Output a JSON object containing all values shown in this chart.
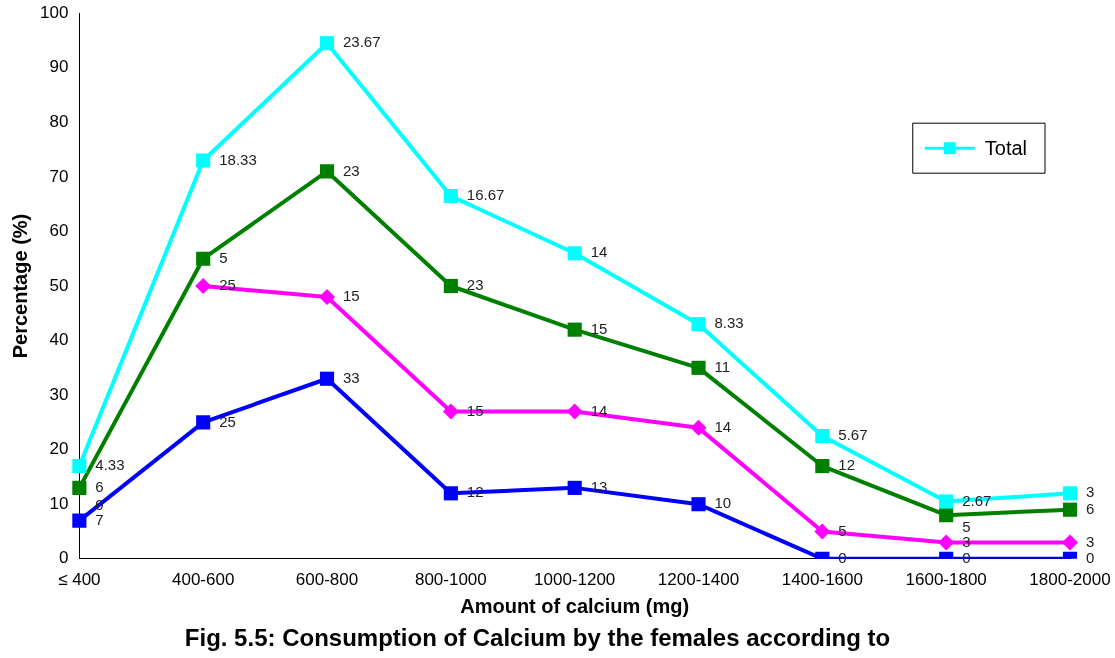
{
  "chart_data": {
    "type": "line",
    "title": "Fig. 5.5: Consumption of Calcium by the females according to",
    "xlabel": "Amount of calcium (mg)",
    "ylabel": "Percentage (%)",
    "categories": [
      "≤ 400",
      "400-600",
      "600-800",
      "800-1000",
      "1000-1200",
      "1200-1400",
      "1400-1600",
      "1600-1800",
      "1800-2000"
    ],
    "series": [
      {
        "name": "Total",
        "color": "#00ffff",
        "marker": "square",
        "values": [
          17,
          73,
          94.5,
          66.5,
          56,
          43,
          22.5,
          10.5,
          12
        ]
      },
      {
        "color": "#008000",
        "marker": "square",
        "values": [
          13,
          55,
          71,
          50,
          42,
          35,
          17,
          8,
          9
        ]
      },
      {
        "color": "#ff00ff",
        "marker": "diamond",
        "values": [
          null,
          50,
          48,
          27,
          27,
          24,
          5,
          3,
          3
        ]
      },
      {
        "color": "#0000ff",
        "marker": "square",
        "values": [
          7,
          25,
          33,
          12,
          13,
          10,
          0,
          0,
          0
        ]
      }
    ],
    "annotations": [
      {
        "text": "4.33",
        "x": "≤ 400",
        "y": 17
      },
      {
        "text": "18.33",
        "x": "400-600",
        "y": 73
      },
      {
        "text": "23.67",
        "x": "600-800",
        "y": 94.5
      },
      {
        "text": "16.67",
        "x": "800-1000",
        "y": 66.5
      },
      {
        "text": "14",
        "x": "1000-1200",
        "y": 56
      },
      {
        "text": "8.33",
        "x": "1200-1400",
        "y": 43
      },
      {
        "text": "5.67",
        "x": "1400-1600",
        "y": 22.5
      },
      {
        "text": "2.67",
        "x": "1600-1800",
        "y": 10.5
      },
      {
        "text": "3",
        "x": "1800-2000",
        "y": 12
      },
      {
        "text": "6",
        "x": "≤ 400",
        "y": 13
      },
      {
        "text": "5",
        "x": "400-600",
        "y": 55
      },
      {
        "text": "23",
        "x": "600-800",
        "y": 71
      },
      {
        "text": "23",
        "x": "800-1000",
        "y": 50
      },
      {
        "text": "15",
        "x": "1000-1200",
        "y": 42
      },
      {
        "text": "11",
        "x": "1200-1400",
        "y": 35
      },
      {
        "text": "12",
        "x": "1400-1600",
        "y": 17
      },
      {
        "text": "5",
        "x": "1600-1800",
        "y": 8
      },
      {
        "text": "6",
        "x": "1800-2000",
        "y": 9
      },
      {
        "text": "0",
        "x": "≤ 400",
        "y": 12
      },
      {
        "text": "25",
        "x": "400-600",
        "y": 50
      },
      {
        "text": "15",
        "x": "600-800",
        "y": 48
      },
      {
        "text": "15",
        "x": "800-1000",
        "y": 27
      },
      {
        "text": "14",
        "x": "1000-1200",
        "y": 27
      },
      {
        "text": "14",
        "x": "1200-1400",
        "y": 24
      },
      {
        "text": "5",
        "x": "1400-1600",
        "y": 5
      },
      {
        "text": "3",
        "x": "1600-1800",
        "y": 3
      },
      {
        "text": "3",
        "x": "1800-2000",
        "y": 3
      },
      {
        "text": "7",
        "x": "≤ 400",
        "y": 7
      },
      {
        "text": "25",
        "x": "400-600",
        "y": 25
      },
      {
        "text": "33",
        "x": "600-800",
        "y": 33
      },
      {
        "text": "12",
        "x": "800-1000",
        "y": 12
      },
      {
        "text": "13",
        "x": "1000-1200",
        "y": 13
      },
      {
        "text": "10",
        "x": "1200-1400",
        "y": 10
      },
      {
        "text": "0",
        "x": "1400-1600",
        "y": 0
      },
      {
        "text": "0",
        "x": "1600-1800",
        "y": 0
      },
      {
        "text": "0",
        "x": "1800-2000",
        "y": 0
      }
    ],
    "ylim": [
      0,
      100
    ],
    "yticks": [
      0,
      10,
      20,
      30,
      40,
      50,
      60,
      70,
      80,
      90,
      100
    ],
    "grid": false,
    "legend": "top right"
  }
}
